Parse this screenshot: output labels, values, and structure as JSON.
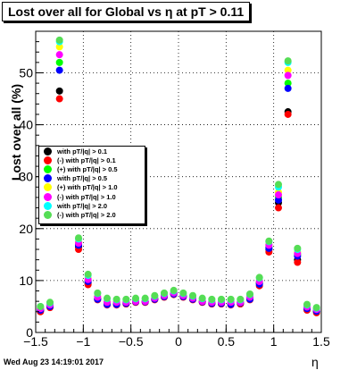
{
  "title": "Lost over all for Global vs   η at pT > 0.11",
  "footer_timestamp": "Wed Aug 23 14:19:01 2017",
  "colors": {
    "frame": "#000000",
    "grid": "#000000"
  },
  "chart_data": {
    "type": "scatter",
    "title": "Lost over all for Global vs   η at pT > 0.11",
    "xlabel": "η",
    "ylabel": "Lost over all (%)",
    "xlim": [
      -1.5,
      1.5
    ],
    "ylim": [
      0,
      58
    ],
    "xticks": [
      "−1.5",
      "−1",
      "−0.5",
      "0",
      "0.5",
      "1",
      "1.5"
    ],
    "yticks": [
      "0",
      "10",
      "20",
      "30",
      "40",
      "50"
    ],
    "grid": true,
    "legend_position": "left-middle",
    "x": [
      -1.45,
      -1.35,
      -1.25,
      -1.15,
      -1.05,
      -0.95,
      -0.85,
      -0.75,
      -0.65,
      -0.55,
      -0.45,
      -0.35,
      -0.25,
      -0.15,
      -0.05,
      0.05,
      0.15,
      0.25,
      0.35,
      0.45,
      0.55,
      0.65,
      0.75,
      0.85,
      0.95,
      1.05,
      1.15,
      1.25,
      1.35,
      1.45
    ],
    "series": [
      {
        "name": "with pT/|q| > 0.1",
        "color": "#000000",
        "values": [
          4.2,
          5.0,
          46.5,
          25.0,
          16.5,
          9.5,
          6.5,
          5.5,
          5.5,
          5.5,
          6.0,
          6.0,
          6.5,
          7.0,
          7.5,
          7.0,
          6.5,
          6.0,
          5.5,
          5.5,
          5.5,
          5.5,
          6.5,
          9.5,
          16.0,
          25.0,
          42.5,
          14.0,
          4.5,
          4.0
        ]
      },
      {
        "name": "with pT/|q| > 0.1",
        "color": "#ff0000",
        "values": [
          4.0,
          4.8,
          45.0,
          24.0,
          16.0,
          9.2,
          6.3,
          5.3,
          5.3,
          5.5,
          5.8,
          5.8,
          6.3,
          6.8,
          7.3,
          6.8,
          6.3,
          5.8,
          5.5,
          5.5,
          5.3,
          5.5,
          6.3,
          9.0,
          15.5,
          24.0,
          42.0,
          13.5,
          4.3,
          3.8
        ]
      },
      {
        "name": "with pT/|q| > 0.5",
        "color": "#00ff00",
        "values": [
          4.5,
          5.2,
          52.0,
          26.0,
          17.0,
          10.0,
          6.5,
          5.5,
          5.5,
          5.7,
          6.0,
          6.0,
          6.5,
          7.0,
          7.5,
          7.0,
          6.5,
          6.0,
          5.7,
          5.7,
          5.5,
          5.8,
          6.5,
          9.5,
          16.5,
          26.0,
          48.0,
          15.0,
          4.8,
          4.2
        ]
      },
      {
        "name": "with pT/|q| > 0.5",
        "color": "#0000ff",
        "values": [
          4.3,
          5.0,
          50.5,
          25.5,
          16.8,
          9.8,
          6.4,
          5.4,
          5.4,
          5.6,
          5.9,
          5.9,
          6.4,
          6.9,
          7.4,
          6.9,
          6.4,
          5.9,
          5.6,
          5.6,
          5.4,
          5.7,
          6.4,
          9.3,
          16.2,
          25.5,
          47.0,
          14.7,
          4.6,
          4.1
        ]
      },
      {
        "name": "with pT/|q| > 1.0",
        "color": "#ffff00",
        "values": [
          4.8,
          5.5,
          55.0,
          27.0,
          17.5,
          10.5,
          7.0,
          6.0,
          6.0,
          6.0,
          6.2,
          6.2,
          6.8,
          7.3,
          7.8,
          7.3,
          6.8,
          6.2,
          6.0,
          6.0,
          6.0,
          6.0,
          7.0,
          10.0,
          17.0,
          27.0,
          50.5,
          15.5,
          5.0,
          4.5
        ]
      },
      {
        "name": "with pT/|q| > 1.0",
        "color": "#ff00ff",
        "values": [
          4.6,
          5.3,
          53.5,
          26.5,
          17.2,
          10.2,
          6.8,
          5.8,
          5.8,
          5.8,
          6.0,
          6.0,
          6.6,
          7.1,
          7.6,
          7.1,
          6.6,
          6.0,
          5.8,
          5.8,
          5.8,
          5.8,
          6.8,
          9.8,
          16.8,
          26.5,
          49.5,
          15.2,
          4.9,
          4.4
        ]
      },
      {
        "name": "with pT/|q| > 2.0",
        "color": "#00ffff",
        "values": [
          5.0,
          5.7,
          56.0,
          28.0,
          18.0,
          11.0,
          7.5,
          6.5,
          6.3,
          6.3,
          6.5,
          6.5,
          7.0,
          7.5,
          8.0,
          7.5,
          7.0,
          6.5,
          6.3,
          6.3,
          6.3,
          6.3,
          7.3,
          10.5,
          17.5,
          28.0,
          52.0,
          16.0,
          5.3,
          4.7
        ]
      },
      {
        "name": "with pT/|q| > 2.0",
        "color": "#55dd55",
        "values": [
          5.0,
          5.8,
          56.3,
          28.5,
          18.2,
          11.2,
          7.6,
          6.6,
          6.4,
          6.4,
          6.6,
          6.6,
          7.1,
          7.6,
          8.1,
          7.6,
          7.1,
          6.6,
          6.4,
          6.4,
          6.4,
          6.4,
          7.4,
          10.6,
          17.6,
          28.5,
          52.3,
          16.2,
          5.4,
          4.8
        ]
      }
    ],
    "legend": [
      {
        "prefix": "",
        "text": "with pT/|q| > 0.1",
        "color": "#000000"
      },
      {
        "prefix": "(-)",
        "text": "with pT/|q| > 0.1",
        "color": "#ff0000"
      },
      {
        "prefix": "(+)",
        "text": "with pT/|q| > 0.5",
        "color": "#00ff00"
      },
      {
        "prefix": "",
        "text": "with pT/|q| > 0.5",
        "color": "#0000ff"
      },
      {
        "prefix": "(+)",
        "text": "with pT/|q| > 1.0",
        "color": "#ffff00"
      },
      {
        "prefix": "(-)",
        "text": "with pT/|q| > 1.0",
        "color": "#ff00ff"
      },
      {
        "prefix": "",
        "text": "with pT/|q| > 2.0",
        "color": "#00ffff"
      },
      {
        "prefix": "(-)",
        "text": "with pT/|q| > 2.0",
        "color": "#55dd55"
      }
    ]
  }
}
